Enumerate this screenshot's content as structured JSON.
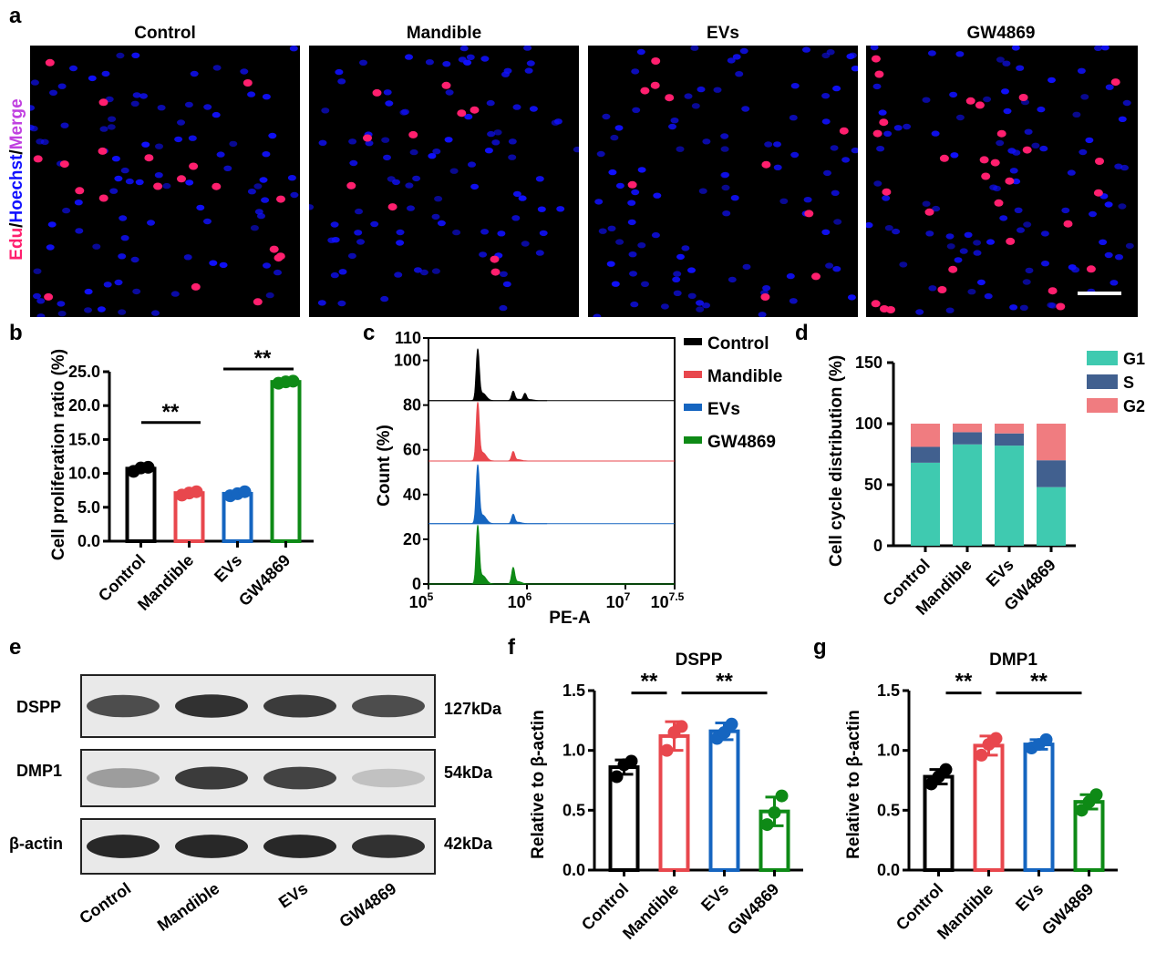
{
  "panels": {
    "a": "a",
    "b": "b",
    "c": "c",
    "d": "d",
    "e": "e",
    "f": "f",
    "g": "g"
  },
  "panel_a": {
    "ylabel_edu": "Edu",
    "ylabel_sep1": "/",
    "ylabel_hoechst": "Hoechst",
    "ylabel_sep2": "/",
    "ylabel_merge": "Merge",
    "groups": [
      "Control",
      "Mandible",
      "EVs",
      "GW4869"
    ],
    "edu_counts": [
      20,
      10,
      10,
      30
    ],
    "colors": {
      "edu": "#ff1f6e",
      "hoechst": "#1010ff",
      "merge": "#c040e0"
    }
  },
  "panel_e": {
    "bands": [
      {
        "name": "DSPP",
        "kda": "127kDa",
        "intensities": [
          0.75,
          0.9,
          0.85,
          0.75
        ]
      },
      {
        "name": "DMP1",
        "kda": "54kDa",
        "intensities": [
          0.3,
          0.85,
          0.8,
          0.1
        ]
      },
      {
        "name": "β-actin",
        "kda": "42kDa",
        "intensities": [
          0.95,
          0.95,
          0.95,
          0.9
        ]
      }
    ],
    "groups": [
      "Control",
      "Mandible",
      "EVs",
      "GW4869"
    ]
  },
  "chart_data": [
    {
      "panel": "b",
      "type": "bar",
      "categories": [
        "Control",
        "Mandible",
        "EVs",
        "GW4869"
      ],
      "values": [
        10.7,
        7.1,
        7.0,
        23.5
      ],
      "points": [
        [
          10.3,
          10.8,
          10.9
        ],
        [
          6.8,
          7.1,
          7.3
        ],
        [
          6.7,
          7.0,
          7.3
        ],
        [
          23.3,
          23.5,
          23.6
        ]
      ],
      "errors": [
        0.3,
        0.25,
        0.3,
        0.15
      ],
      "colors": [
        "#000000",
        "#e8474d",
        "#1565c0",
        "#0e8a16"
      ],
      "ylabel": "Cell proliferation ratio (%)",
      "ylim": [
        0,
        25
      ],
      "yticks": [
        "0.0",
        "5.0",
        "10.0",
        "15.0",
        "20.0",
        "25.0"
      ],
      "yticks_values": [
        0,
        5,
        10,
        15,
        20,
        25
      ],
      "significance": [
        {
          "from": 0,
          "to": 1,
          "y": 17.5,
          "label": "**"
        },
        {
          "from": 2,
          "to": 3,
          "y": 25.5,
          "label": "**"
        }
      ]
    },
    {
      "panel": "c",
      "type": "line",
      "xlabel": "PE-A",
      "ylabel": "Count (%)",
      "xticks": [
        {
          "base": "10",
          "exp": "5"
        },
        {
          "base": "10",
          "exp": "6"
        },
        {
          "base": "10",
          "exp": "7"
        },
        {
          "base": "10",
          "exp": "7.5"
        }
      ],
      "xticks_values": [
        5,
        6,
        7,
        7.5
      ],
      "xlim_log10": [
        5,
        7.5
      ],
      "ylim": [
        0,
        110
      ],
      "yticks": [
        "0",
        "20",
        "40",
        "60",
        "80",
        "100",
        "110"
      ],
      "yticks_values": [
        0,
        20,
        40,
        60,
        80,
        100,
        110
      ],
      "series": [
        {
          "name": "Control",
          "color": "#000000",
          "offset": 82,
          "peaks": [
            [
              5.5,
              22
            ],
            [
              5.86,
              4
            ],
            [
              5.98,
              3
            ]
          ]
        },
        {
          "name": "Mandible",
          "color": "#e8474d",
          "offset": 55,
          "peaks": [
            [
              5.5,
              25
            ],
            [
              5.86,
              4
            ]
          ]
        },
        {
          "name": "EVs",
          "color": "#1565c0",
          "offset": 27,
          "peaks": [
            [
              5.5,
              25
            ],
            [
              5.86,
              4
            ]
          ]
        },
        {
          "name": "GW4869",
          "color": "#0e8a16",
          "offset": 0,
          "peaks": [
            [
              5.5,
              25
            ],
            [
              5.86,
              7
            ]
          ]
        }
      ]
    },
    {
      "panel": "d",
      "type": "bar",
      "stacked": true,
      "categories": [
        "Control",
        "Mandible",
        "EVs",
        "GW4869"
      ],
      "series": [
        {
          "name": "G1",
          "color": "#3fcab0",
          "values": [
            68,
            83,
            82,
            48
          ]
        },
        {
          "name": "S",
          "color": "#41608f",
          "values": [
            13,
            10,
            10,
            22
          ]
        },
        {
          "name": "G2",
          "color": "#f07c80",
          "values": [
            19,
            7,
            8,
            30
          ]
        }
      ],
      "ylabel": "Cell cycle distribution (%)",
      "ylim": [
        0,
        150
      ],
      "yticks": [
        "0",
        "50",
        "100",
        "150"
      ],
      "yticks_values": [
        0,
        50,
        100,
        150
      ]
    },
    {
      "panel": "f",
      "type": "bar",
      "title": "DSPP",
      "categories": [
        "Control",
        "Mandible",
        "EVs",
        "GW4869"
      ],
      "values": [
        0.86,
        1.12,
        1.16,
        0.49
      ],
      "points": [
        [
          0.78,
          0.88,
          0.91
        ],
        [
          1.0,
          1.15,
          1.2
        ],
        [
          1.1,
          1.15,
          1.22
        ],
        [
          0.38,
          0.48,
          0.62
        ]
      ],
      "errors": [
        0.06,
        0.12,
        0.07,
        0.12
      ],
      "colors": [
        "#000000",
        "#e8474d",
        "#1565c0",
        "#0e8a16"
      ],
      "ylabel": "Relative to β-actin",
      "ylim": [
        0,
        1.5
      ],
      "yticks": [
        "0.0",
        "0.5",
        "1.0",
        "1.5"
      ],
      "yticks_values": [
        0,
        0.5,
        1.0,
        1.5
      ],
      "significance": [
        {
          "from": 0,
          "to": 1,
          "y": 1.48,
          "label": "**"
        },
        {
          "from": 1,
          "to": 3,
          "y": 1.48,
          "label": "**"
        }
      ]
    },
    {
      "panel": "g",
      "type": "bar",
      "title": "DMP1",
      "categories": [
        "Control",
        "Mandible",
        "EVs",
        "GW4869"
      ],
      "values": [
        0.78,
        1.04,
        1.05,
        0.57
      ],
      "points": [
        [
          0.72,
          0.78,
          0.84
        ],
        [
          0.96,
          1.05,
          1.1
        ],
        [
          1.02,
          1.05,
          1.09
        ],
        [
          0.5,
          0.57,
          0.63
        ]
      ],
      "errors": [
        0.06,
        0.08,
        0.04,
        0.06
      ],
      "colors": [
        "#000000",
        "#e8474d",
        "#1565c0",
        "#0e8a16"
      ],
      "ylabel": "Relative to β-actin",
      "ylim": [
        0,
        1.5
      ],
      "yticks": [
        "0.0",
        "0.5",
        "1.0",
        "1.5"
      ],
      "yticks_values": [
        0,
        0.5,
        1.0,
        1.5
      ],
      "significance": [
        {
          "from": 0,
          "to": 1,
          "y": 1.48,
          "label": "**"
        },
        {
          "from": 1,
          "to": 3,
          "y": 1.48,
          "label": "**"
        }
      ]
    }
  ]
}
